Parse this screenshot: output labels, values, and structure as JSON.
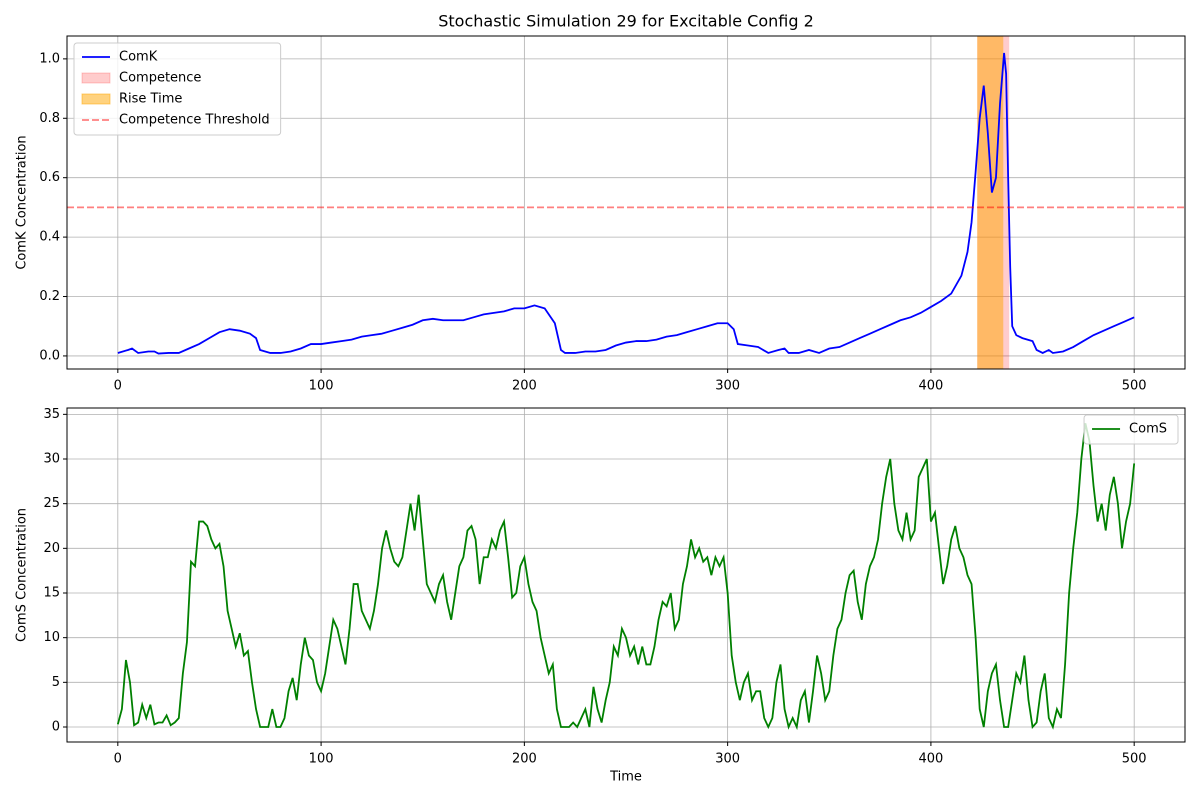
{
  "chart_data": [
    {
      "type": "line",
      "title": "Stochastic Simulation 29 for Excitable Config 2",
      "ylabel": "ComK Concentration",
      "x": [
        0,
        5,
        7,
        10,
        15,
        18,
        20,
        25,
        30,
        35,
        40,
        45,
        50,
        55,
        60,
        65,
        68,
        70,
        75,
        80,
        85,
        90,
        95,
        100,
        105,
        110,
        115,
        120,
        125,
        130,
        135,
        140,
        145,
        150,
        155,
        160,
        165,
        170,
        175,
        180,
        185,
        190,
        195,
        200,
        205,
        210,
        215,
        218,
        220,
        225,
        230,
        235,
        240,
        245,
        250,
        255,
        260,
        265,
        270,
        275,
        280,
        285,
        290,
        295,
        300,
        303,
        305,
        310,
        315,
        320,
        325,
        328,
        330,
        335,
        340,
        345,
        350,
        355,
        360,
        365,
        370,
        375,
        380,
        385,
        390,
        395,
        400,
        405,
        410,
        415,
        418,
        420,
        422,
        424,
        426,
        428,
        430,
        432,
        434,
        436,
        437,
        438,
        439,
        440,
        442,
        445,
        450,
        452,
        455,
        458,
        460,
        465,
        470,
        475,
        480,
        485,
        490,
        495,
        500
      ],
      "series": [
        {
          "name": "ComK",
          "color": "#0000ff",
          "values": [
            0.01,
            0.02,
            0.025,
            0.01,
            0.015,
            0.015,
            0.008,
            0.01,
            0.01,
            0.025,
            0.04,
            0.06,
            0.08,
            0.09,
            0.085,
            0.075,
            0.06,
            0.02,
            0.01,
            0.01,
            0.015,
            0.025,
            0.04,
            0.04,
            0.045,
            0.05,
            0.055,
            0.065,
            0.07,
            0.075,
            0.085,
            0.095,
            0.105,
            0.12,
            0.125,
            0.12,
            0.12,
            0.12,
            0.13,
            0.14,
            0.145,
            0.15,
            0.16,
            0.16,
            0.17,
            0.16,
            0.11,
            0.02,
            0.01,
            0.01,
            0.015,
            0.015,
            0.02,
            0.035,
            0.045,
            0.05,
            0.05,
            0.055,
            0.065,
            0.07,
            0.08,
            0.09,
            0.1,
            0.11,
            0.11,
            0.09,
            0.04,
            0.035,
            0.03,
            0.01,
            0.02,
            0.025,
            0.01,
            0.01,
            0.02,
            0.01,
            0.025,
            0.03,
            0.045,
            0.06,
            0.075,
            0.09,
            0.105,
            0.12,
            0.13,
            0.145,
            0.165,
            0.185,
            0.21,
            0.27,
            0.35,
            0.45,
            0.62,
            0.8,
            0.91,
            0.75,
            0.55,
            0.6,
            0.85,
            1.02,
            0.95,
            0.6,
            0.3,
            0.1,
            0.07,
            0.06,
            0.05,
            0.02,
            0.01,
            0.02,
            0.01,
            0.015,
            0.03,
            0.05,
            0.07,
            0.085,
            0.1,
            0.115,
            0.13
          ]
        }
      ],
      "spans": [
        {
          "name": "Competence",
          "color": "#ff0000",
          "alpha": 0.2,
          "range": [
            422.8,
            438.5
          ]
        },
        {
          "name": "Rise Time",
          "color": "#ffa500",
          "alpha": 0.5,
          "range": [
            422.8,
            435.6
          ]
        }
      ],
      "hlines": [
        {
          "name": "Competence Threshold",
          "color": "#ff0000",
          "alpha": 0.5,
          "value": 0.5,
          "dash": true
        }
      ],
      "xlim": [
        -25,
        525
      ],
      "ylim": [
        -0.044,
        1.077
      ],
      "xticks": [
        0,
        100,
        200,
        300,
        400,
        500
      ],
      "yticks": [
        {
          "value": 0,
          "label": "0.0"
        },
        0.2,
        0.4,
        0.6,
        0.8,
        {
          "value": 1,
          "label": "1.0"
        }
      ],
      "grid": true,
      "legend": "upper left"
    },
    {
      "type": "line",
      "ylabel": "ComS Concentration",
      "xlabel": "Time",
      "x": [
        0,
        2,
        4,
        6,
        8,
        10,
        12,
        14,
        16,
        18,
        20,
        22,
        24,
        26,
        28,
        30,
        32,
        34,
        36,
        38,
        40,
        42,
        44,
        46,
        48,
        50,
        52,
        54,
        56,
        58,
        60,
        62,
        64,
        66,
        68,
        70,
        72,
        74,
        76,
        78,
        80,
        82,
        84,
        86,
        88,
        90,
        92,
        94,
        96,
        98,
        100,
        102,
        104,
        106,
        108,
        110,
        112,
        114,
        116,
        118,
        120,
        122,
        124,
        126,
        128,
        130,
        132,
        134,
        136,
        138,
        140,
        142,
        144,
        146,
        148,
        150,
        152,
        154,
        156,
        158,
        160,
        162,
        164,
        166,
        168,
        170,
        172,
        174,
        176,
        178,
        180,
        182,
        184,
        186,
        188,
        190,
        192,
        194,
        196,
        198,
        200,
        202,
        204,
        206,
        208,
        210,
        212,
        214,
        216,
        218,
        220,
        222,
        224,
        226,
        228,
        230,
        232,
        234,
        236,
        238,
        240,
        242,
        244,
        246,
        248,
        250,
        252,
        254,
        256,
        258,
        260,
        262,
        264,
        266,
        268,
        270,
        272,
        274,
        276,
        278,
        280,
        282,
        284,
        286,
        288,
        290,
        292,
        294,
        296,
        298,
        300,
        302,
        304,
        306,
        308,
        310,
        312,
        314,
        316,
        318,
        320,
        322,
        324,
        326,
        328,
        330,
        332,
        334,
        336,
        338,
        340,
        342,
        344,
        346,
        348,
        350,
        352,
        354,
        356,
        358,
        360,
        362,
        364,
        366,
        368,
        370,
        372,
        374,
        376,
        378,
        380,
        382,
        384,
        386,
        388,
        390,
        392,
        394,
        396,
        398,
        400,
        402,
        404,
        406,
        408,
        410,
        412,
        414,
        416,
        418,
        420,
        422,
        424,
        426,
        428,
        430,
        432,
        434,
        436,
        438,
        440,
        442,
        444,
        446,
        448,
        450,
        452,
        454,
        456,
        458,
        460,
        462,
        464,
        466,
        468,
        470,
        472,
        474,
        476,
        478,
        480,
        482,
        484,
        486,
        488,
        490,
        492,
        494,
        496,
        498,
        500
      ],
      "series": [
        {
          "name": "ComS",
          "color": "#008000",
          "values": [
            0.3,
            2,
            7.5,
            5,
            0.2,
            0.5,
            2.5,
            1,
            2.5,
            0.3,
            0.5,
            0.5,
            1.3,
            0.2,
            0.5,
            1,
            6,
            9.5,
            18.5,
            18,
            23,
            23,
            22.5,
            21,
            20,
            20.5,
            18,
            13,
            11,
            9,
            10.5,
            8,
            8.5,
            5,
            2,
            0,
            0,
            0,
            2,
            0,
            0,
            1,
            4,
            5.5,
            3,
            7,
            10,
            8,
            7.5,
            5,
            4,
            6,
            9,
            12,
            11,
            9,
            7,
            11,
            16,
            16,
            13,
            12,
            11,
            13,
            16,
            20,
            22,
            20,
            18.5,
            18,
            19,
            22,
            25,
            22,
            26,
            21,
            16,
            15,
            14,
            16,
            17,
            14,
            12,
            15,
            18,
            19,
            22,
            22.5,
            21,
            16,
            19,
            19,
            21,
            20,
            22,
            23,
            19,
            14.5,
            15,
            18,
            19,
            16,
            14,
            13,
            10,
            8,
            6,
            7,
            2,
            0,
            0,
            0,
            0.5,
            0,
            1,
            2,
            0,
            4.5,
            2,
            0.5,
            3,
            5,
            9,
            8,
            11,
            10,
            8,
            9,
            7,
            9,
            7,
            7,
            9,
            12,
            14,
            13.5,
            15,
            11,
            12,
            16,
            18,
            21,
            19,
            20,
            18.5,
            19,
            17,
            19,
            18,
            19,
            15,
            8,
            5,
            3,
            5,
            6,
            3,
            4,
            4,
            1,
            0,
            1,
            5,
            7,
            2,
            0,
            1,
            0,
            3,
            4,
            0.5,
            4,
            8,
            6,
            3,
            4,
            8,
            11,
            12,
            15,
            17,
            17.5,
            14,
            12,
            16,
            18,
            19,
            21,
            25,
            28,
            30,
            25,
            22,
            21,
            24,
            21,
            22,
            28,
            29,
            30,
            23,
            24,
            20,
            16,
            18,
            21,
            22.5,
            20,
            19,
            17,
            16,
            10,
            2,
            0,
            4,
            6,
            7,
            3,
            0,
            0,
            3,
            6,
            5,
            8,
            3,
            0,
            0.5,
            4,
            6,
            1,
            0,
            2,
            1,
            7,
            15,
            20,
            24,
            30,
            34,
            32,
            27,
            23,
            25,
            22,
            26,
            28,
            25,
            20,
            23,
            25,
            29.5
          ]
        }
      ],
      "xlim": [
        -25,
        525
      ],
      "ylim": [
        -1.68,
        35.71
      ],
      "xticks": [
        0,
        100,
        200,
        300,
        400,
        500
      ],
      "yticks": [
        0,
        5,
        10,
        15,
        20,
        25,
        30,
        35
      ],
      "grid": true,
      "legend": "upper right"
    }
  ]
}
